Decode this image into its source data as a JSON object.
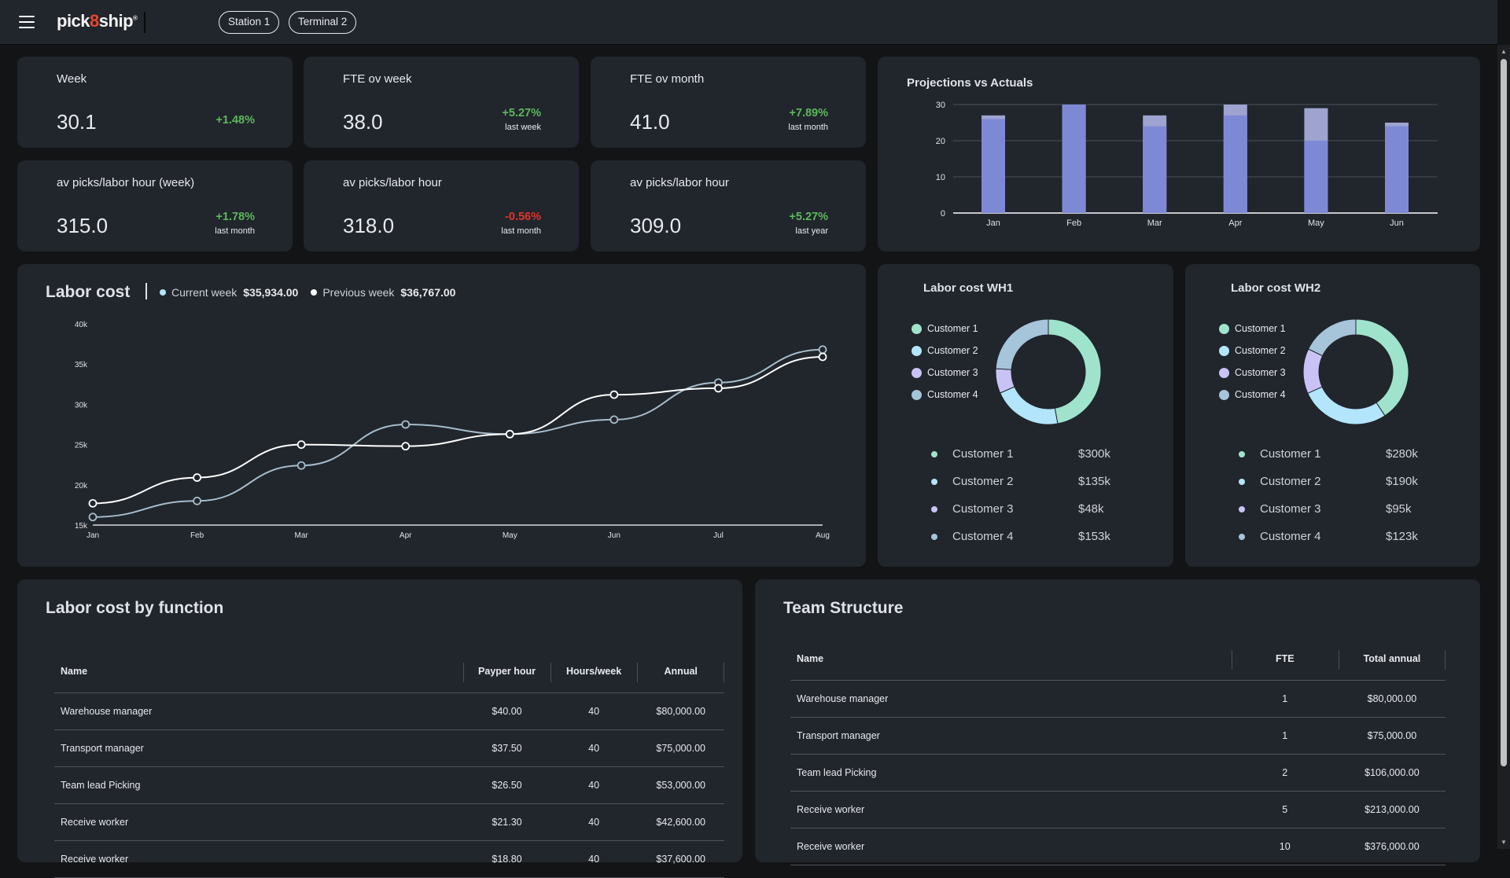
{
  "header": {
    "logo": "pick8ship",
    "station": "Station 1",
    "terminal": "Terminal 2"
  },
  "kpis": [
    {
      "label": "Week",
      "value": "30.1",
      "change": "+1.48%",
      "sub": "",
      "trend": "pos"
    },
    {
      "label": "FTE ov week",
      "value": "38.0",
      "change": "+5.27%",
      "sub": "last week",
      "trend": "pos"
    },
    {
      "label": "FTE ov month",
      "value": "41.0",
      "change": "+7.89%",
      "sub": "last month",
      "trend": "pos"
    },
    {
      "label": "av picks/labor hour (week)",
      "value": "315.0",
      "change": "+1.78%",
      "sub": "last month",
      "trend": "pos"
    },
    {
      "label": "av picks/labor hour",
      "value": "318.0",
      "change": "-0.56%",
      "sub": "last month",
      "trend": "neg"
    },
    {
      "label": "av picks/labor hour",
      "value": "309.0",
      "change": "+5.27%",
      "sub": "last year",
      "trend": "pos"
    }
  ],
  "colors": {
    "positive": "#5cb85c",
    "negative": "#e5322c",
    "bar_actual": "#7e89d6",
    "bar_projection": "#9ea4cf",
    "current_week": "#a6bccb",
    "previous_week": "#ffffff",
    "customer_1": "#a0e3cc",
    "customer_2": "#b3e5fc",
    "customer_3": "#c9c3f5",
    "customer_4": "#a6c4da"
  },
  "chart_data": [
    {
      "type": "bar",
      "title": "Projections vs Actuals",
      "stacked": "overlay",
      "categories": [
        "Jan",
        "Feb",
        "Mar",
        "Apr",
        "May",
        "Jun"
      ],
      "series": [
        {
          "key": "actual",
          "values": [
            26,
            30,
            24,
            27,
            20,
            24
          ]
        },
        {
          "key": "projection",
          "values": [
            27,
            30,
            27,
            30,
            29,
            25
          ]
        }
      ],
      "yticks": [
        "0",
        "10",
        "20",
        "30"
      ],
      "ylim": [
        0,
        30
      ],
      "grid": true
    },
    {
      "type": "line",
      "title": "Labor cost",
      "categories": [
        "Jan",
        "Feb",
        "Mar",
        "Apr",
        "May",
        "Jun",
        "Jul",
        "Aug"
      ],
      "series": [
        {
          "name": "Current week",
          "total": "$35,934.00",
          "values": [
            16000,
            18000,
            22400,
            27500,
            26300,
            28100,
            32700,
            36800
          ]
        },
        {
          "name": "Previous week",
          "total": "$36,767.00",
          "values": [
            17700,
            20900,
            25000,
            24800,
            26300,
            31200,
            32000,
            35900
          ]
        }
      ],
      "yticks": [
        "15k",
        "20k",
        "25k",
        "30k",
        "35k",
        "40k"
      ],
      "ylim": [
        15000,
        40000
      ]
    },
    {
      "type": "pie",
      "title": "Labor cost WH1",
      "labels": [
        "Customer 1",
        "Customer 2",
        "Customer 3",
        "Customer 4"
      ],
      "values": [
        300,
        135,
        48,
        153
      ],
      "display": [
        "$300k",
        "$135k",
        "$48k",
        "$153k"
      ]
    },
    {
      "type": "pie",
      "title": "Labor cost WH2",
      "labels": [
        "Customer 1",
        "Customer 2",
        "Customer 3",
        "Customer 4"
      ],
      "values": [
        280,
        190,
        95,
        123
      ],
      "display": [
        "$280k",
        "$190k",
        "$95k",
        "$123k"
      ]
    }
  ],
  "function_table": {
    "title": "Labor cost by function",
    "columns": [
      "Name",
      "Payper hour",
      "Hours/week",
      "Annual"
    ],
    "rows": [
      [
        "Warehouse manager",
        "$40.00",
        "40",
        "$80,000.00"
      ],
      [
        "Transport manager",
        "$37.50",
        "40",
        "$75,000.00"
      ],
      [
        "Team lead Picking",
        "$26.50",
        "40",
        "$53,000.00"
      ],
      [
        "Receive worker",
        "$21.30",
        "40",
        "$42,600.00"
      ],
      [
        "Receive worker",
        "$18.80",
        "40",
        "$37,600.00"
      ]
    ]
  },
  "team_table": {
    "title": "Team Structure",
    "columns": [
      "Name",
      "FTE",
      "Total annual"
    ],
    "rows": [
      [
        "Warehouse manager",
        "1",
        "$80,000.00"
      ],
      [
        "Transport manager",
        "1",
        "$75,000.00"
      ],
      [
        "Team lead Picking",
        "2",
        "$106,000.00"
      ],
      [
        "Receive worker",
        "5",
        "$213,000.00"
      ],
      [
        "Receive worker",
        "10",
        "$376,000.00"
      ]
    ]
  }
}
